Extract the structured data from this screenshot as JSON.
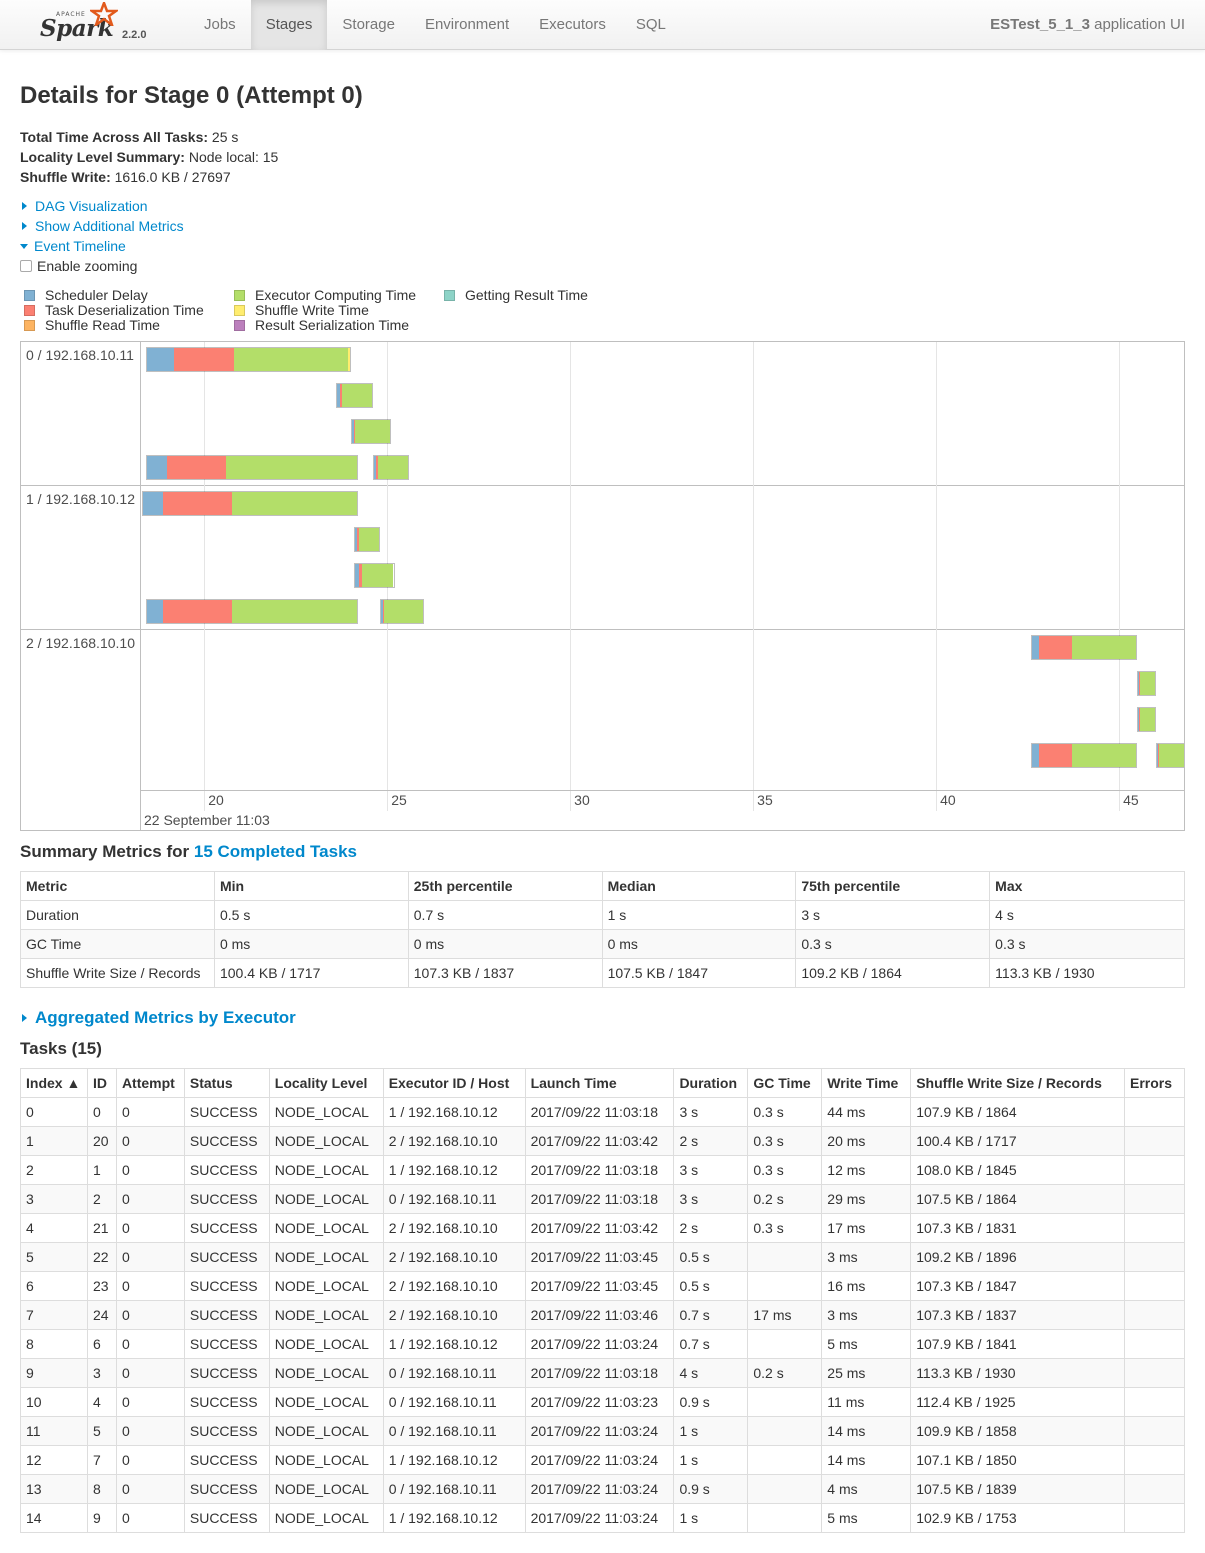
{
  "navbar": {
    "brand_apache": "APACHE",
    "brand_spark": "Spark",
    "version": "2.2.0",
    "tabs": [
      "Jobs",
      "Stages",
      "Storage",
      "Environment",
      "Executors",
      "SQL"
    ],
    "active_tab": "Stages",
    "app_name": "ESTest_5_1_3",
    "app_suffix": "application UI"
  },
  "page_title": "Details for Stage 0 (Attempt 0)",
  "summary": {
    "total_time_label": "Total Time Across All Tasks:",
    "total_time_value": "25 s",
    "locality_label": "Locality Level Summary:",
    "locality_value": "Node local: 15",
    "shuffle_write_label": "Shuffle Write:",
    "shuffle_write_value": "1616.0 KB / 27697"
  },
  "expanders": {
    "dag": "DAG Visualization",
    "additional": "Show Additional Metrics",
    "timeline": "Event Timeline",
    "zoom": "Enable zooming",
    "aggregated": "Aggregated Metrics by Executor"
  },
  "legend": [
    {
      "label": "Scheduler Delay",
      "color": "#80b1d3"
    },
    {
      "label": "Task Deserialization Time",
      "color": "#fb8072"
    },
    {
      "label": "Shuffle Read Time",
      "color": "#fdb462"
    },
    {
      "label": "Executor Computing Time",
      "color": "#b3de69"
    },
    {
      "label": "Shuffle Write Time",
      "color": "#ffed6f"
    },
    {
      "label": "Result Serialization Time",
      "color": "#bc80bd"
    },
    {
      "label": "Getting Result Time",
      "color": "#8dd3c7"
    }
  ],
  "timeline": {
    "executors": [
      "0 / 192.168.10.11",
      "1 / 192.168.10.12",
      "2 / 192.168.10.10"
    ],
    "ticks": [
      "20",
      "25",
      "30",
      "35",
      "40",
      "45"
    ],
    "major_label": "22 September 11:03",
    "axis_seconds": [
      18.3,
      46.8
    ],
    "tasks": [
      {
        "exec": 0,
        "lane": 0,
        "start": 18.4,
        "end": 24.0,
        "segments": [
          0.75,
          1.65,
          3.15,
          0.05
        ]
      },
      {
        "exec": 0,
        "lane": 1,
        "start": 23.6,
        "end": 24.6,
        "segments": [
          0.1,
          0.05,
          0.85
        ]
      },
      {
        "exec": 0,
        "lane": 2,
        "start": 24.0,
        "end": 25.1,
        "segments": [
          0.06,
          0.04,
          1.0
        ]
      },
      {
        "exec": 0,
        "lane": 3,
        "start": 18.4,
        "end": 24.2,
        "segments": [
          0.55,
          1.65,
          3.6
        ]
      },
      {
        "exec": 0,
        "lane": 3,
        "start": 24.6,
        "end": 25.6,
        "segments": [
          0.08,
          0.05,
          0.87
        ]
      },
      {
        "exec": 1,
        "lane": 0,
        "start": 18.3,
        "end": 24.2,
        "segments": [
          0.55,
          1.9,
          3.45
        ]
      },
      {
        "exec": 1,
        "lane": 1,
        "start": 24.1,
        "end": 24.8,
        "segments": [
          0.05,
          0.05,
          0.6
        ]
      },
      {
        "exec": 1,
        "lane": 2,
        "start": 24.1,
        "end": 25.2,
        "segments": [
          0.12,
          0.06,
          0.92
        ]
      },
      {
        "exec": 1,
        "lane": 3,
        "start": 18.4,
        "end": 24.2,
        "segments": [
          0.45,
          1.9,
          3.45
        ]
      },
      {
        "exec": 1,
        "lane": 3,
        "start": 24.8,
        "end": 26.0,
        "segments": [
          0.05,
          0.05,
          1.1
        ]
      },
      {
        "exec": 2,
        "lane": 0,
        "start": 42.6,
        "end": 45.5,
        "segments": [
          0.2,
          0.9,
          1.8
        ]
      },
      {
        "exec": 2,
        "lane": 1,
        "start": 45.5,
        "end": 46.0,
        "segments": [
          0.03,
          0.03,
          0.44
        ]
      },
      {
        "exec": 2,
        "lane": 2,
        "start": 45.5,
        "end": 46.0,
        "segments": [
          0.03,
          0.03,
          0.44
        ]
      },
      {
        "exec": 2,
        "lane": 3,
        "start": 42.6,
        "end": 45.5,
        "segments": [
          0.2,
          0.9,
          1.8
        ]
      },
      {
        "exec": 2,
        "lane": 3,
        "start": 46.0,
        "end": 46.8,
        "segments": [
          0.05,
          0.02,
          0.73
        ]
      }
    ]
  },
  "summary_metrics": {
    "title_prefix": "Summary Metrics for",
    "title_link": "15 Completed Tasks",
    "headers": [
      "Metric",
      "Min",
      "25th percentile",
      "Median",
      "75th percentile",
      "Max"
    ],
    "rows": [
      [
        "Duration",
        "0.5 s",
        "0.7 s",
        "1 s",
        "3 s",
        "4 s"
      ],
      [
        "GC Time",
        "0 ms",
        "0 ms",
        "0 ms",
        "0.3 s",
        "0.3 s"
      ],
      [
        "Shuffle Write Size / Records",
        "100.4 KB / 1717",
        "107.3 KB / 1837",
        "107.5 KB / 1847",
        "109.2 KB / 1864",
        "113.3 KB / 1930"
      ]
    ]
  },
  "tasks": {
    "title": "Tasks (15)",
    "headers": [
      "Index ▲",
      "ID",
      "Attempt",
      "Status",
      "Locality Level",
      "Executor ID / Host",
      "Launch Time",
      "Duration",
      "GC Time",
      "Write Time",
      "Shuffle Write Size / Records",
      "Errors"
    ],
    "rows": [
      [
        "0",
        "0",
        "0",
        "SUCCESS",
        "NODE_LOCAL",
        "1 / 192.168.10.12",
        "2017/09/22 11:03:18",
        "3 s",
        "0.3 s",
        "44 ms",
        "107.9 KB / 1864",
        ""
      ],
      [
        "1",
        "20",
        "0",
        "SUCCESS",
        "NODE_LOCAL",
        "2 / 192.168.10.10",
        "2017/09/22 11:03:42",
        "2 s",
        "0.3 s",
        "20 ms",
        "100.4 KB / 1717",
        ""
      ],
      [
        "2",
        "1",
        "0",
        "SUCCESS",
        "NODE_LOCAL",
        "1 / 192.168.10.12",
        "2017/09/22 11:03:18",
        "3 s",
        "0.3 s",
        "12 ms",
        "108.0 KB / 1845",
        ""
      ],
      [
        "3",
        "2",
        "0",
        "SUCCESS",
        "NODE_LOCAL",
        "0 / 192.168.10.11",
        "2017/09/22 11:03:18",
        "3 s",
        "0.2 s",
        "29 ms",
        "107.5 KB / 1864",
        ""
      ],
      [
        "4",
        "21",
        "0",
        "SUCCESS",
        "NODE_LOCAL",
        "2 / 192.168.10.10",
        "2017/09/22 11:03:42",
        "2 s",
        "0.3 s",
        "17 ms",
        "107.3 KB / 1831",
        ""
      ],
      [
        "5",
        "22",
        "0",
        "SUCCESS",
        "NODE_LOCAL",
        "2 / 192.168.10.10",
        "2017/09/22 11:03:45",
        "0.5 s",
        "",
        "3 ms",
        "109.2 KB / 1896",
        ""
      ],
      [
        "6",
        "23",
        "0",
        "SUCCESS",
        "NODE_LOCAL",
        "2 / 192.168.10.10",
        "2017/09/22 11:03:45",
        "0.5 s",
        "",
        "16 ms",
        "107.3 KB / 1847",
        ""
      ],
      [
        "7",
        "24",
        "0",
        "SUCCESS",
        "NODE_LOCAL",
        "2 / 192.168.10.10",
        "2017/09/22 11:03:46",
        "0.7 s",
        "17 ms",
        "3 ms",
        "107.3 KB / 1837",
        ""
      ],
      [
        "8",
        "6",
        "0",
        "SUCCESS",
        "NODE_LOCAL",
        "1 / 192.168.10.12",
        "2017/09/22 11:03:24",
        "0.7 s",
        "",
        "5 ms",
        "107.9 KB / 1841",
        ""
      ],
      [
        "9",
        "3",
        "0",
        "SUCCESS",
        "NODE_LOCAL",
        "0 / 192.168.10.11",
        "2017/09/22 11:03:18",
        "4 s",
        "0.2 s",
        "25 ms",
        "113.3 KB / 1930",
        ""
      ],
      [
        "10",
        "4",
        "0",
        "SUCCESS",
        "NODE_LOCAL",
        "0 / 192.168.10.11",
        "2017/09/22 11:03:23",
        "0.9 s",
        "",
        "11 ms",
        "112.4 KB / 1925",
        ""
      ],
      [
        "11",
        "5",
        "0",
        "SUCCESS",
        "NODE_LOCAL",
        "0 / 192.168.10.11",
        "2017/09/22 11:03:24",
        "1 s",
        "",
        "14 ms",
        "109.9 KB / 1858",
        ""
      ],
      [
        "12",
        "7",
        "0",
        "SUCCESS",
        "NODE_LOCAL",
        "1 / 192.168.10.12",
        "2017/09/22 11:03:24",
        "1 s",
        "",
        "14 ms",
        "107.1 KB / 1850",
        ""
      ],
      [
        "13",
        "8",
        "0",
        "SUCCESS",
        "NODE_LOCAL",
        "0 / 192.168.10.11",
        "2017/09/22 11:03:24",
        "0.9 s",
        "",
        "4 ms",
        "107.5 KB / 1839",
        ""
      ],
      [
        "14",
        "9",
        "0",
        "SUCCESS",
        "NODE_LOCAL",
        "1 / 192.168.10.12",
        "2017/09/22 11:03:24",
        "1 s",
        "",
        "5 ms",
        "102.9 KB / 1753",
        ""
      ]
    ]
  }
}
